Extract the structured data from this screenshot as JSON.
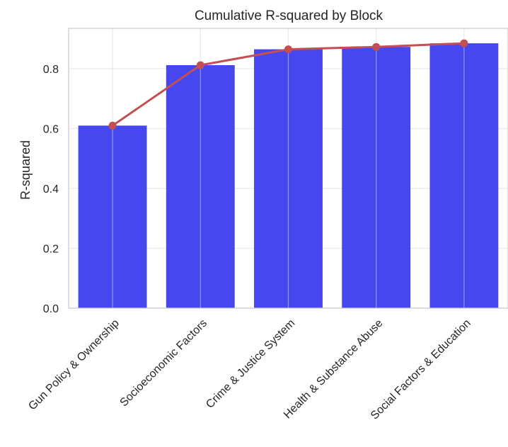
{
  "chart_data": {
    "type": "bar",
    "title": "Cumulative R-squared by Block",
    "xlabel": "",
    "ylabel": "R-squared",
    "categories": [
      "Gun Policy & Ownership",
      "Socioeconomic Factors",
      "Crime & Justice System",
      "Health & Substance Abuse",
      "Social Factors & Education"
    ],
    "series": [
      {
        "type": "bar",
        "values": [
          0.61,
          0.812,
          0.865,
          0.873,
          0.885
        ],
        "color": "#3333ee"
      },
      {
        "type": "line",
        "values": [
          0.61,
          0.812,
          0.865,
          0.873,
          0.885
        ],
        "color": "#c44e52"
      }
    ],
    "ylim": [
      0,
      0.935
    ],
    "yticks": [
      0.0,
      0.2,
      0.4,
      0.6,
      0.8
    ],
    "ytick_labels": [
      "0.0",
      "0.2",
      "0.4",
      "0.6",
      "0.8"
    ],
    "grid": true,
    "legend": "none"
  }
}
